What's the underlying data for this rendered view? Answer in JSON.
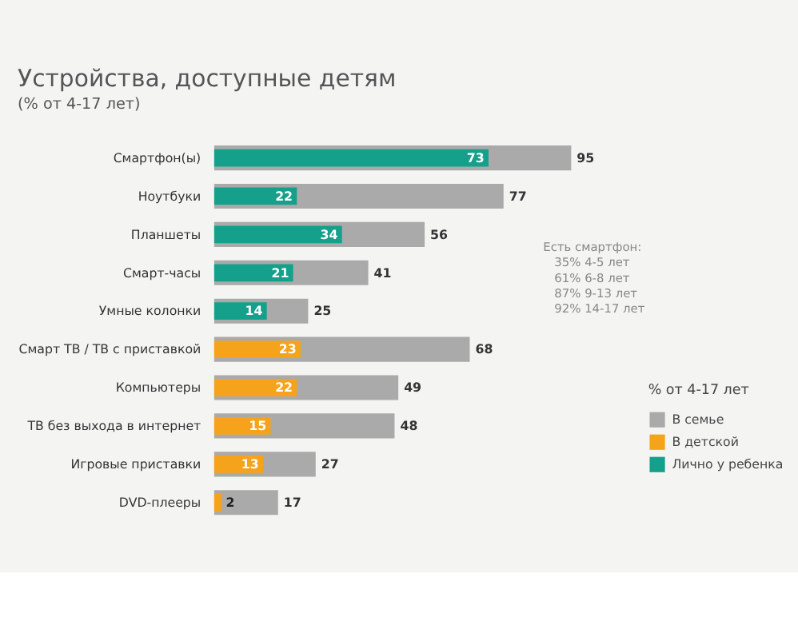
{
  "chart_data": {
    "type": "bar",
    "orientation": "horizontal",
    "title": "Устройства, доступные детям",
    "subtitle": "(% от 4-17 лет)",
    "categories": [
      "Смартфон(ы)",
      "Ноутбуки",
      "Планшеты",
      "Смарт-часы",
      "Умные колонки",
      "Смарт ТВ / ТВ с приставкой",
      "Компьютеры",
      "ТВ без выхода в интернет",
      "Игровые приставки",
      "DVD-плееры"
    ],
    "series": [
      {
        "name": "В семье",
        "color": "#aaaaaa",
        "values": [
          95,
          77,
          56,
          41,
          25,
          68,
          49,
          48,
          27,
          17
        ]
      },
      {
        "name": "В детской",
        "color": "#f5a31a",
        "values": [
          null,
          null,
          null,
          null,
          null,
          23,
          22,
          15,
          13,
          2
        ]
      },
      {
        "name": "Лично у ребенка",
        "color": "#15a08c",
        "values": [
          73,
          22,
          34,
          21,
          14,
          null,
          null,
          null,
          null,
          null
        ]
      }
    ],
    "data_labels": true,
    "legend": "bottom right",
    "legend_title": "% от 4-17 лет",
    "grid": false,
    "annotations": [
      "Есть смартфон:",
      "35% 4-5 лет",
      "61% 6-8 лет",
      "87% 9-13 лет",
      "92% 14-17 лет"
    ]
  }
}
